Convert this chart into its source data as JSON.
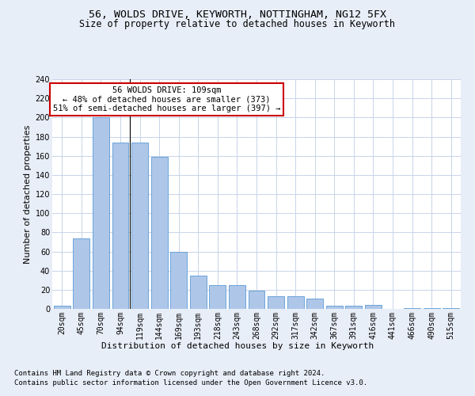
{
  "title_line1": "56, WOLDS DRIVE, KEYWORTH, NOTTINGHAM, NG12 5FX",
  "title_line2": "Size of property relative to detached houses in Keyworth",
  "xlabel": "Distribution of detached houses by size in Keyworth",
  "ylabel": "Number of detached properties",
  "categories": [
    "20sqm",
    "45sqm",
    "70sqm",
    "94sqm",
    "119sqm",
    "144sqm",
    "169sqm",
    "193sqm",
    "218sqm",
    "243sqm",
    "268sqm",
    "292sqm",
    "317sqm",
    "342sqm",
    "367sqm",
    "391sqm",
    "416sqm",
    "441sqm",
    "466sqm",
    "490sqm",
    "515sqm"
  ],
  "values": [
    3,
    74,
    200,
    174,
    174,
    159,
    60,
    35,
    25,
    25,
    19,
    13,
    13,
    11,
    3,
    3,
    4,
    0,
    1,
    1,
    1
  ],
  "bar_color": "#aec6e8",
  "bar_edge_color": "#5b9bd5",
  "annotation_box_text": "56 WOLDS DRIVE: 109sqm\n← 48% of detached houses are smaller (373)\n51% of semi-detached houses are larger (397) →",
  "annotation_box_facecolor": "#ffffff",
  "annotation_box_edgecolor": "#cc0000",
  "vline_x_index": 3,
  "ylim": [
    0,
    240
  ],
  "yticks": [
    0,
    20,
    40,
    60,
    80,
    100,
    120,
    140,
    160,
    180,
    200,
    220,
    240
  ],
  "footer_line1": "Contains HM Land Registry data © Crown copyright and database right 2024.",
  "footer_line2": "Contains public sector information licensed under the Open Government Licence v3.0.",
  "background_color": "#e8eef8",
  "plot_bg_color": "#ffffff",
  "grid_color": "#c8d4e8",
  "title_fontsize": 9.5,
  "subtitle_fontsize": 8.5,
  "axis_label_fontsize": 8,
  "tick_fontsize": 7,
  "annotation_fontsize": 7.5,
  "footer_fontsize": 6.5
}
